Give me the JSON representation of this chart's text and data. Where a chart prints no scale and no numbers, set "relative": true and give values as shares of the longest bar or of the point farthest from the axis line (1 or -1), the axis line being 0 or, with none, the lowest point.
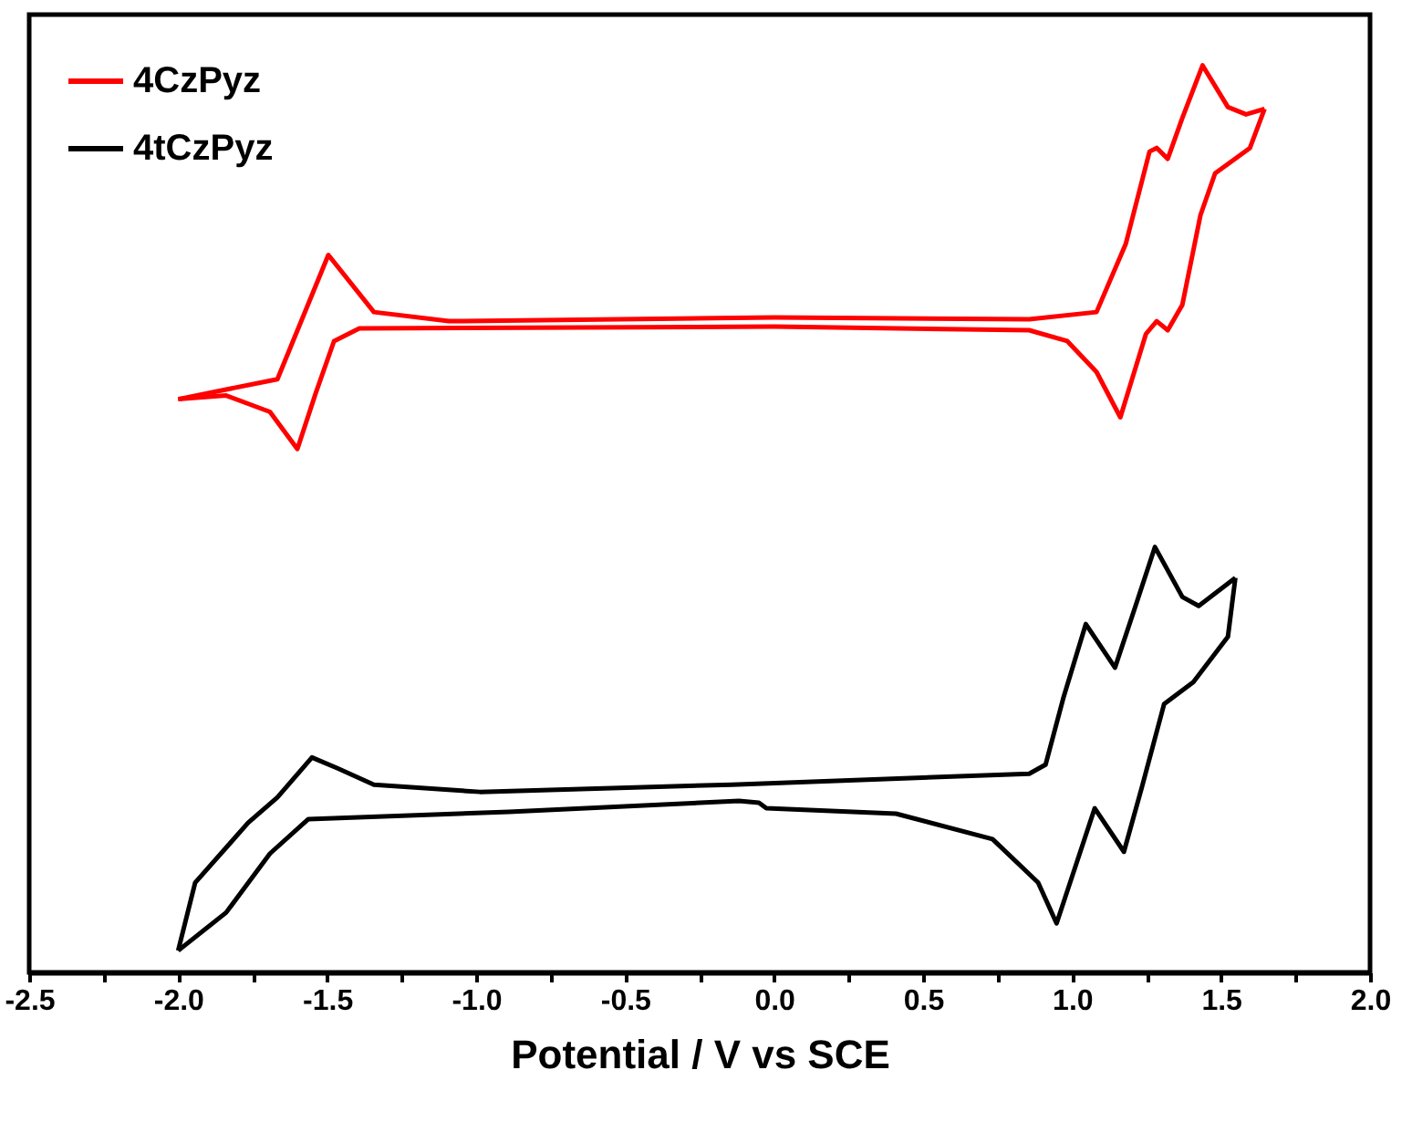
{
  "chart_data": {
    "type": "line",
    "relative": true,
    "xlabel": "Potential / V vs SCE",
    "xlim": [
      -2.5,
      2.0
    ],
    "xticks": [
      -2.5,
      {
        "value": -2.25,
        "label": null
      },
      {
        "value": -2,
        "label": "-2.0"
      },
      {
        "value": -1.75,
        "label": null
      },
      -1.5,
      {
        "value": -1.25,
        "label": null
      },
      {
        "value": -1,
        "label": "-1.0"
      },
      {
        "value": -0.75,
        "label": null
      },
      -0.5,
      {
        "value": -0.25,
        "label": null
      },
      {
        "value": 0,
        "label": "0.0"
      },
      {
        "value": 0.25,
        "label": null
      },
      0.5,
      {
        "value": 0.75,
        "label": null
      },
      {
        "value": 1,
        "label": "1.0"
      },
      {
        "value": 1.25,
        "label": null
      },
      1.5,
      {
        "value": 1.75,
        "label": null
      },
      {
        "value": 2,
        "label": "2.0"
      }
    ],
    "legend": "top left",
    "grid": false,
    "marker": "none",
    "line_style": "solid",
    "series": [
      {
        "name": "4CzPyz",
        "color": "#ff0000",
        "x": [
          -2.0,
          -1.667,
          -1.496,
          -1.343,
          -1.092,
          0.0,
          0.856,
          1.082,
          1.18,
          1.26,
          1.284,
          1.321,
          1.37,
          1.438,
          1.523,
          1.584,
          1.646
        ],
        "values": [
          0.632,
          0.654,
          0.791,
          0.728,
          0.718,
          0.722,
          0.72,
          0.728,
          0.803,
          0.905,
          0.909,
          0.897,
          0.942,
          1.0,
          0.954,
          0.946,
          0.952
        ]
      },
      {
        "color": "#ff0000",
        "x": [
          1.646,
          1.597,
          1.48,
          1.431,
          1.37,
          1.321,
          1.284,
          1.248,
          1.162,
          1.082,
          0.984,
          0.856,
          0.0,
          -1.392,
          -1.477,
          -1.539,
          -1.6,
          -1.692,
          -1.839,
          -2.0
        ],
        "values": [
          0.952,
          0.909,
          0.881,
          0.835,
          0.736,
          0.708,
          0.718,
          0.704,
          0.612,
          0.662,
          0.696,
          0.708,
          0.712,
          0.71,
          0.696,
          0.638,
          0.577,
          0.618,
          0.636,
          0.632
        ]
      },
      {
        "name": "4tCzPyz",
        "color": "#000000",
        "x": [
          -2.0,
          -1.943,
          -1.765,
          -1.667,
          -1.551,
          -1.465,
          -1.343,
          -0.987,
          -0.142,
          0.856,
          0.911,
          0.972,
          1.046,
          1.144,
          1.211,
          1.278,
          1.37,
          1.425,
          1.548
        ],
        "values": [
          0.024,
          0.099,
          0.165,
          0.193,
          0.237,
          0.225,
          0.207,
          0.199,
          0.207,
          0.219,
          0.229,
          0.304,
          0.384,
          0.336,
          0.402,
          0.469,
          0.414,
          0.404,
          0.435
        ]
      },
      {
        "color": "#000000",
        "x": [
          1.548,
          1.523,
          1.407,
          1.309,
          1.235,
          1.174,
          1.076,
          0.948,
          0.886,
          0.733,
          0.409,
          -0.026,
          -0.051,
          -0.118,
          -0.89,
          -1.563,
          -1.692,
          -1.839,
          -2.0
        ],
        "values": [
          0.435,
          0.37,
          0.32,
          0.296,
          0.205,
          0.133,
          0.181,
          0.054,
          0.099,
          0.147,
          0.175,
          0.181,
          0.187,
          0.189,
          0.177,
          0.169,
          0.131,
          0.066,
          0.024
        ]
      }
    ]
  }
}
